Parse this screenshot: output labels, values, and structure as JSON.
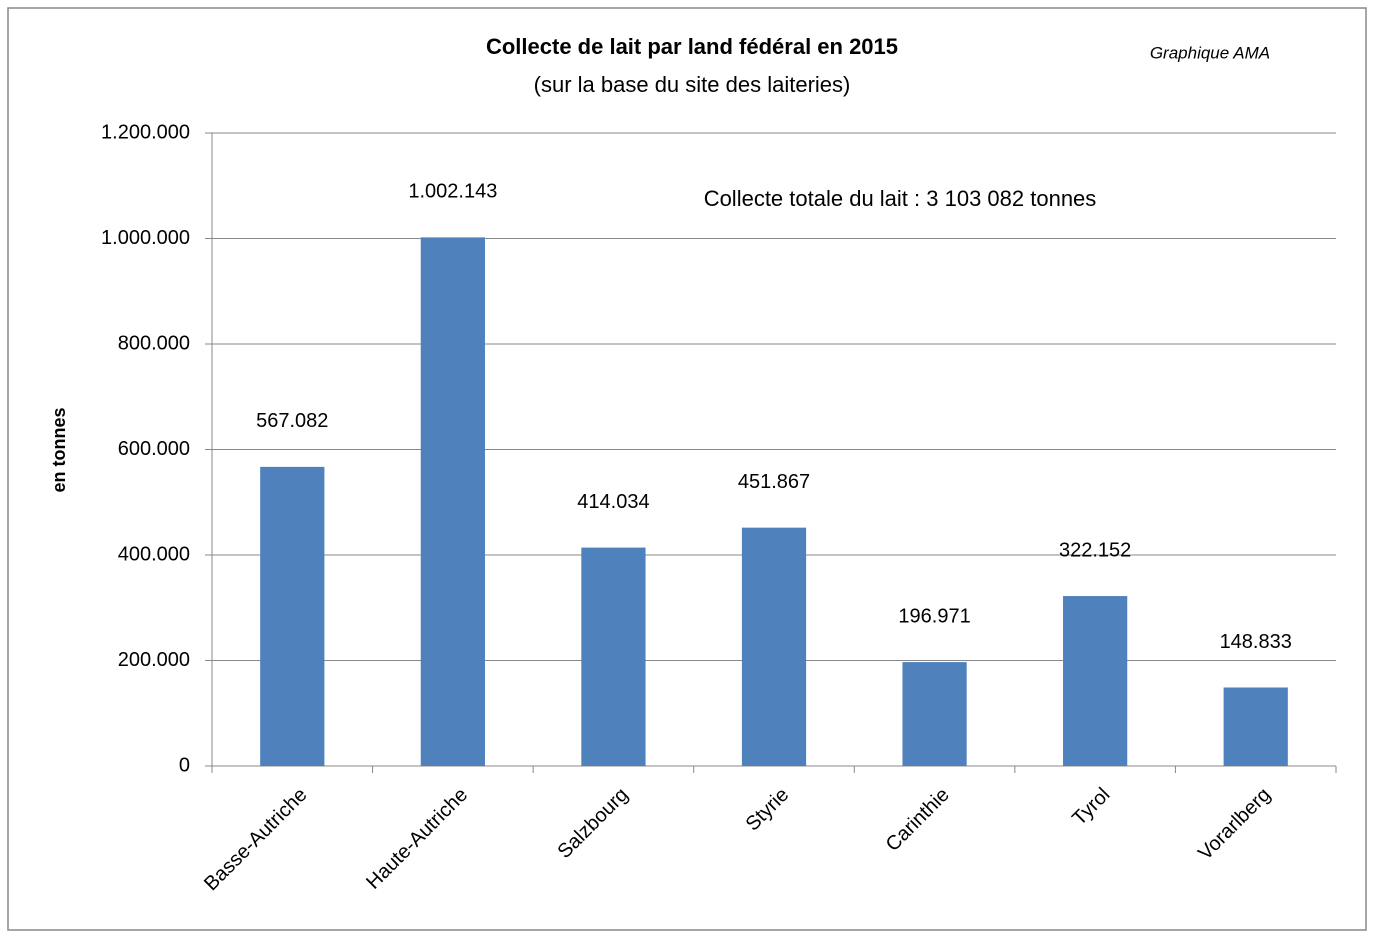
{
  "chart_data": {
    "type": "bar",
    "title": "Collecte de lait par land fédéral en 2015",
    "subtitle": "(sur la base du site des laiteries)",
    "annotations": [
      "Graphique AMA",
      "Collecte totale du lait : 3 103 082 tonnes"
    ],
    "y_label": "en tonnes",
    "categories": [
      "Basse-Autriche",
      "Haute-Autriche",
      "Salzbourg",
      "Styrie",
      "Carinthie",
      "Tyrol",
      "Vorarlberg"
    ],
    "values": [
      567082,
      1002143,
      414034,
      451867,
      196971,
      322152,
      148833
    ],
    "value_labels": [
      "567.082",
      "1.002.143",
      "414.034",
      "451.867",
      "196.971",
      "322.152",
      "148.833"
    ],
    "color": "#4f81bd",
    "ylim": [
      0,
      1200000
    ],
    "yticks": [
      0,
      {
        "value": 200000,
        "label": "200.000"
      },
      {
        "value": 400000,
        "label": "400.000"
      },
      {
        "value": 600000,
        "label": "600.000"
      },
      {
        "value": 800000,
        "label": "800.000"
      },
      {
        "value": 1000000,
        "label": "1.000.000"
      },
      {
        "value": 1200000,
        "label": "1.200.000"
      }
    ],
    "grid": true
  }
}
